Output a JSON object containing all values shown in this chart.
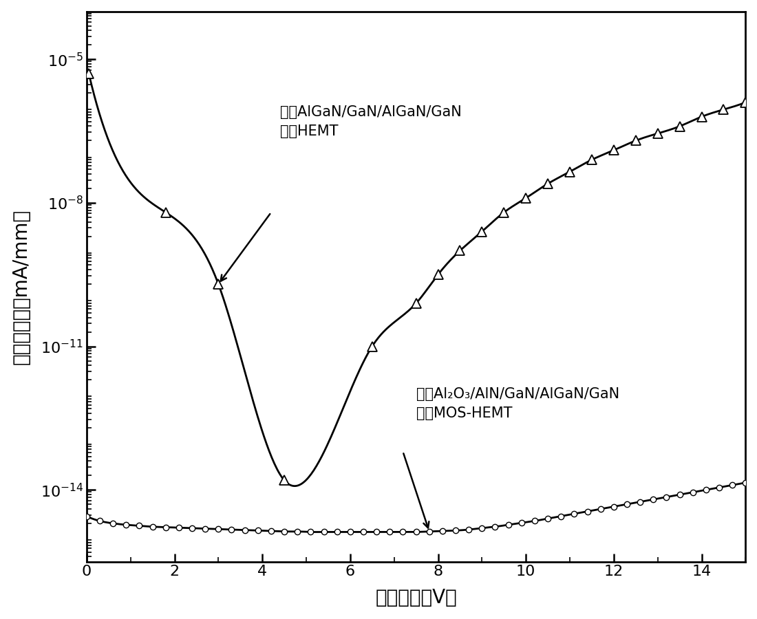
{
  "xlabel": "漏极电压（V）",
  "ylabel": "栏极漏电流（mA/mm）",
  "xlim": [
    0,
    15
  ],
  "xticks": [
    0,
    2,
    4,
    6,
    8,
    10,
    12,
    14
  ],
  "ytick_exp": [
    -14,
    -11,
    -8,
    -5
  ],
  "bg_color": "#ffffff",
  "ann1_line1": "传统AlGaN/GaN/AlGaN/GaN",
  "ann1_line2": "双沟HEMT",
  "ann2_line1": "新型Al₂O₃/AlN/GaN/AlGaN/GaN",
  "ann2_line2": "双沟MOS-HEMT",
  "tri_x": [
    0.05,
    1.8,
    3.0,
    4.5,
    6.5,
    7.5,
    8.0,
    8.5,
    9.0,
    9.5,
    10.0,
    10.5,
    11.0,
    11.5,
    12.0,
    12.5,
    13.0,
    13.5,
    14.0,
    14.5,
    15.0
  ],
  "tri_ylog": [
    -5.3,
    -8.2,
    -9.7,
    -13.8,
    -11.0,
    -10.1,
    -9.5,
    -9.0,
    -8.6,
    -8.2,
    -7.9,
    -7.6,
    -7.35,
    -7.1,
    -6.9,
    -6.7,
    -6.55,
    -6.4,
    -6.2,
    -6.05,
    -5.9
  ],
  "cir_x": [
    0.0,
    0.3,
    0.6,
    0.9,
    1.2,
    1.5,
    1.8,
    2.1,
    2.4,
    2.7,
    3.0,
    3.3,
    3.6,
    3.9,
    4.2,
    4.5,
    4.8,
    5.1,
    5.4,
    5.7,
    6.0,
    6.3,
    6.6,
    6.9,
    7.2,
    7.5,
    7.8,
    8.1,
    8.4,
    8.7,
    9.0,
    9.3,
    9.6,
    9.9,
    10.2,
    10.5,
    10.8,
    11.1,
    11.4,
    11.7,
    12.0,
    12.3,
    12.6,
    12.9,
    13.2,
    13.5,
    13.8,
    14.1,
    14.4,
    14.7,
    15.0
  ],
  "cir_ylog": [
    -14.55,
    -14.65,
    -14.7,
    -14.73,
    -14.75,
    -14.77,
    -14.78,
    -14.79,
    -14.8,
    -14.81,
    -14.82,
    -14.83,
    -14.84,
    -14.85,
    -14.86,
    -14.87,
    -14.87,
    -14.88,
    -14.88,
    -14.88,
    -14.88,
    -14.88,
    -14.88,
    -14.88,
    -14.88,
    -14.88,
    -14.87,
    -14.86,
    -14.85,
    -14.83,
    -14.8,
    -14.77,
    -14.73,
    -14.69,
    -14.65,
    -14.6,
    -14.55,
    -14.5,
    -14.45,
    -14.4,
    -14.35,
    -14.3,
    -14.25,
    -14.2,
    -14.15,
    -14.1,
    -14.05,
    -14.0,
    -13.95,
    -13.9,
    -13.85
  ]
}
